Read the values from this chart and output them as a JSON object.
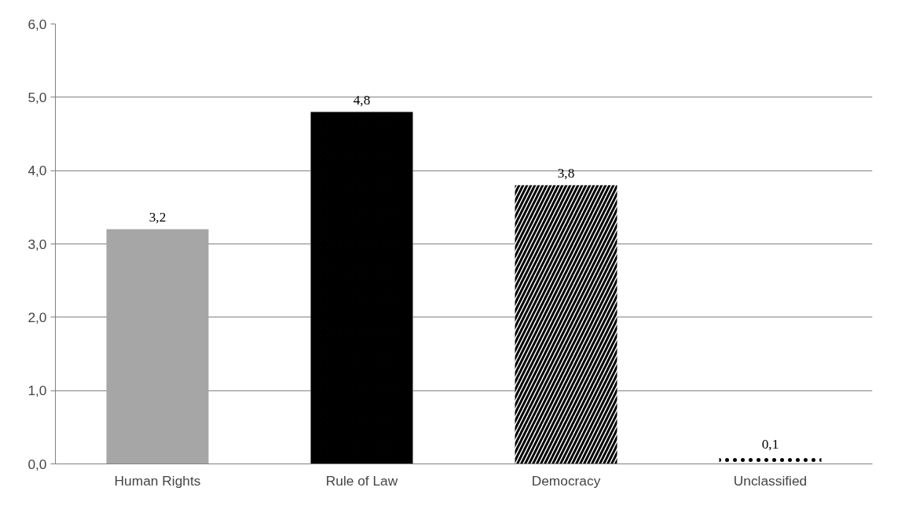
{
  "chart_data": {
    "type": "bar",
    "categories": [
      "Human Rights",
      "Rule of Law",
      "Democracy",
      "Unclassified"
    ],
    "values": [
      3.2,
      4.8,
      3.8,
      0.1
    ],
    "colors": [
      "#a6a6a6",
      "#000000",
      "#000000",
      "#000000"
    ],
    "value_labels": [
      "3,2",
      "4,8",
      "3,8",
      "0,1"
    ],
    "ylim": [
      0,
      6
    ],
    "yticks": [
      {
        "value": 0,
        "label": "0,0"
      },
      {
        "value": 1,
        "label": "1,0"
      },
      {
        "value": 2,
        "label": "2,0"
      },
      {
        "value": 3,
        "label": "3,0"
      },
      {
        "value": 4,
        "label": "4,0"
      },
      {
        "value": 5,
        "label": "5,0"
      },
      {
        "value": 6,
        "label": "6,0"
      }
    ],
    "grid": "y"
  }
}
